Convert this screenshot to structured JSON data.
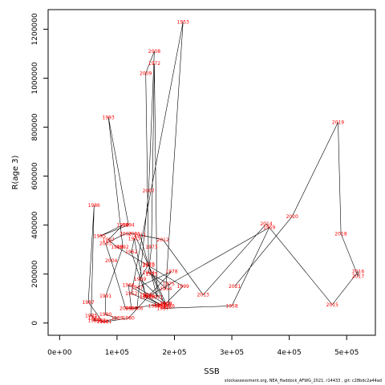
{
  "chart_data": {
    "type": "line",
    "xlabel": "SSB",
    "ylabel": "R(age 3)",
    "xlim": [
      -20000,
      550000
    ],
    "ylim": [
      -50000,
      1280000
    ],
    "x_ticks": [
      {
        "value": 0,
        "label": "0e+00"
      },
      {
        "value": 100000,
        "label": "1e+05"
      },
      {
        "value": 200000,
        "label": "2e+05"
      },
      {
        "value": 300000,
        "label": "3e+05"
      },
      {
        "value": 400000,
        "label": "4e+05"
      },
      {
        "value": 500000,
        "label": "5e+05"
      }
    ],
    "y_ticks": [
      {
        "value": 0,
        "label": "0"
      },
      {
        "value": 200000,
        "label": "200000"
      },
      {
        "value": 400000,
        "label": "400000"
      },
      {
        "value": 600000,
        "label": "600000"
      },
      {
        "value": 800000,
        "label": "800000"
      },
      {
        "value": 1000000,
        "label": "1000000"
      },
      {
        "value": 1200000,
        "label": "1200000"
      }
    ],
    "points": [
      {
        "year": "1950",
        "ssb": 165000,
        "r": 70000
      },
      {
        "year": "1951",
        "ssb": 175000,
        "r": 70000
      },
      {
        "year": "1952",
        "ssb": 125000,
        "r": 120000
      },
      {
        "year": "1953",
        "ssb": 215000,
        "r": 1230000
      },
      {
        "year": "1954",
        "ssb": 185000,
        "r": 140000
      },
      {
        "year": "1955",
        "ssb": 160000,
        "r": 200000
      },
      {
        "year": "1956",
        "ssb": 185000,
        "r": 65000
      },
      {
        "year": "1957",
        "ssb": 180000,
        "r": 60000
      },
      {
        "year": "1958",
        "ssb": 300000,
        "r": 70000
      },
      {
        "year": "1959",
        "ssb": 365000,
        "r": 390000
      },
      {
        "year": "1960",
        "ssb": 155000,
        "r": 110000
      },
      {
        "year": "1961",
        "ssb": 150000,
        "r": 115000
      },
      {
        "year": "1962",
        "ssb": 125000,
        "r": 290000
      },
      {
        "year": "1963",
        "ssb": 130000,
        "r": 345000
      },
      {
        "year": "1964",
        "ssb": 150000,
        "r": 105000
      },
      {
        "year": "1965",
        "ssb": 175000,
        "r": 75000
      },
      {
        "year": "1966",
        "ssb": 120000,
        "r": 155000
      },
      {
        "year": "1967",
        "ssb": 125000,
        "r": 60000
      },
      {
        "year": "1968",
        "ssb": 185000,
        "r": 80000
      },
      {
        "year": "1969",
        "ssb": 140000,
        "r": 180000
      },
      {
        "year": "1970",
        "ssb": 155000,
        "r": 240000
      },
      {
        "year": "1971",
        "ssb": 170000,
        "r": 105000
      },
      {
        "year": "1972",
        "ssb": 165000,
        "r": 1060000
      },
      {
        "year": "1973",
        "ssb": 160000,
        "r": 310000
      },
      {
        "year": "1974",
        "ssb": 155000,
        "r": 205000
      },
      {
        "year": "1975",
        "ssb": 190000,
        "r": 160000
      },
      {
        "year": "1976",
        "ssb": 190000,
        "r": 70000
      },
      {
        "year": "1977",
        "ssb": 135000,
        "r": 145000
      },
      {
        "year": "1978",
        "ssb": 195000,
        "r": 210000
      },
      {
        "year": "1979",
        "ssb": 155000,
        "r": 110000
      },
      {
        "year": "1980",
        "ssb": 120000,
        "r": 20000
      },
      {
        "year": "1981",
        "ssb": 80000,
        "r": 5000
      },
      {
        "year": "1982",
        "ssb": 70000,
        "r": 10000
      },
      {
        "year": "1983",
        "ssb": 60000,
        "r": 10000
      },
      {
        "year": "1984",
        "ssb": 60000,
        "r": 20000
      },
      {
        "year": "1985",
        "ssb": 55000,
        "r": 30000
      },
      {
        "year": "1986",
        "ssb": 60000,
        "r": 480000
      },
      {
        "year": "1987",
        "ssb": 50000,
        "r": 85000
      },
      {
        "year": "1988",
        "ssb": 75000,
        "r": 5000
      },
      {
        "year": "1989",
        "ssb": 100000,
        "r": 20000
      },
      {
        "year": "1990",
        "ssb": 80000,
        "r": 35000
      },
      {
        "year": "1991",
        "ssb": 80000,
        "r": 110000
      },
      {
        "year": "1992",
        "ssb": 110000,
        "r": 310000
      },
      {
        "year": "1993",
        "ssb": 85000,
        "r": 840000
      },
      {
        "year": "1994",
        "ssb": 120000,
        "r": 400000
      },
      {
        "year": "1995",
        "ssb": 70000,
        "r": 355000
      },
      {
        "year": "1996",
        "ssb": 110000,
        "r": 400000
      },
      {
        "year": "1997",
        "ssb": 85000,
        "r": 340000
      },
      {
        "year": "1998",
        "ssb": 100000,
        "r": 310000
      },
      {
        "year": "1999",
        "ssb": 215000,
        "r": 150000
      },
      {
        "year": "2000",
        "ssb": 185000,
        "r": 80000
      },
      {
        "year": "2001",
        "ssb": 130000,
        "r": 365000
      },
      {
        "year": "2002",
        "ssb": 115000,
        "r": 365000
      },
      {
        "year": "2003",
        "ssb": 80000,
        "r": 325000
      },
      {
        "year": "2004",
        "ssb": 90000,
        "r": 255000
      },
      {
        "year": "2005",
        "ssb": 115000,
        "r": 60000
      },
      {
        "year": "2006",
        "ssb": 135000,
        "r": 60000
      },
      {
        "year": "2007",
        "ssb": 155000,
        "r": 540000
      },
      {
        "year": "2008",
        "ssb": 165000,
        "r": 1110000
      },
      {
        "year": "2009",
        "ssb": 150000,
        "r": 1020000
      },
      {
        "year": "2010",
        "ssb": 155000,
        "r": 235000
      },
      {
        "year": "2011",
        "ssb": 140000,
        "r": 360000
      },
      {
        "year": "2012",
        "ssb": 180000,
        "r": 340000
      },
      {
        "year": "2013",
        "ssb": 250000,
        "r": 115000
      },
      {
        "year": "2014",
        "ssb": 360000,
        "r": 405000
      },
      {
        "year": "2015",
        "ssb": 475000,
        "r": 75000
      },
      {
        "year": "2016",
        "ssb": 520000,
        "r": 210000
      },
      {
        "year": "2017",
        "ssb": 520000,
        "r": 190000
      },
      {
        "year": "2018",
        "ssb": 490000,
        "r": 365000
      },
      {
        "year": "2019",
        "ssb": 485000,
        "r": 820000
      },
      {
        "year": "2020",
        "ssb": 405000,
        "r": 435000
      },
      {
        "year": "2021",
        "ssb": 305000,
        "r": 150000
      }
    ]
  },
  "footer": {
    "text": "stockassessment.org,  NEA_Haddock_AFWG_2021,  r14433 ,  git:  c28bdc2a44ad"
  }
}
